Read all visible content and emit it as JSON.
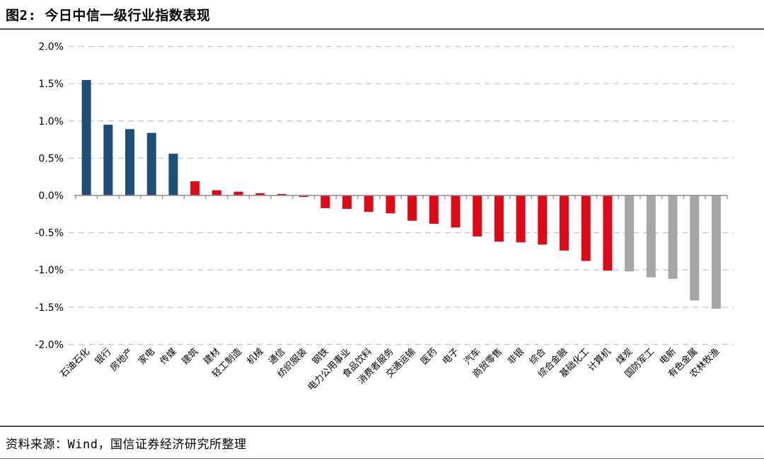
{
  "header": {
    "title": "图2: 今日中信一级行业指数表现"
  },
  "footer": {
    "source": "资料来源：Wind，国信证券经济研究所整理"
  },
  "chart_data": {
    "type": "bar",
    "title": "图2: 今日中信一级行业指数表现",
    "xlabel": "",
    "ylabel": "",
    "ylim": [
      -2.0,
      2.0
    ],
    "ytick_step": 0.5,
    "ytick_labels": [
      "2.0%",
      "1.5%",
      "1.0%",
      "0.5%",
      "0.0%",
      "-0.5%",
      "-1.0%",
      "-1.5%",
      "-2.0%"
    ],
    "grid": "horizontal-dashed",
    "legend": "none",
    "value_unit": "percent",
    "categories": [
      "石油石化",
      "银行",
      "房地产",
      "家电",
      "传媒",
      "建筑",
      "建材",
      "轻工制造",
      "机械",
      "通信",
      "纺织服装",
      "钢铁",
      "电力公用事业",
      "食品饮料",
      "消费者服务",
      "交通运输",
      "医药",
      "电子",
      "汽车",
      "商贸零售",
      "非银",
      "综合",
      "综合金融",
      "基础化工",
      "计算机",
      "煤炭",
      "国防军工",
      "电新",
      "有色金属",
      "农林牧渔"
    ],
    "values": [
      1.55,
      0.95,
      0.89,
      0.84,
      0.56,
      0.19,
      0.07,
      0.05,
      0.03,
      0.02,
      -0.02,
      -0.17,
      -0.18,
      -0.22,
      -0.24,
      -0.34,
      -0.38,
      -0.43,
      -0.55,
      -0.62,
      -0.63,
      -0.66,
      -0.74,
      -0.88,
      -1.01,
      -1.02,
      -1.1,
      -1.12,
      -1.41,
      -1.52
    ],
    "groups": [
      "blue",
      "blue",
      "blue",
      "blue",
      "blue",
      "red",
      "red",
      "red",
      "red",
      "red",
      "red",
      "red",
      "red",
      "red",
      "red",
      "red",
      "red",
      "red",
      "red",
      "red",
      "red",
      "red",
      "red",
      "red",
      "red",
      "gray",
      "gray",
      "gray",
      "gray",
      "gray"
    ],
    "palette": {
      "blue": "#1F4E79",
      "red": "#DF0817",
      "gray": "#A6A6A6"
    },
    "style": {
      "gridline_color": "#C9C9C9",
      "axis_color": "#8C8C8C",
      "tick_color": "#8C8C8C",
      "label_color": "#000000"
    }
  }
}
